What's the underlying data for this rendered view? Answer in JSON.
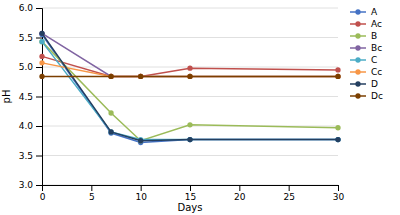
{
  "chart_data": {
    "type": "line",
    "xlabel": "Days",
    "ylabel": "pH",
    "x": [
      0,
      7,
      10,
      15,
      30
    ],
    "series": [
      {
        "name": "A",
        "color": "#4472C4",
        "marker": "o",
        "values": [
          5.55,
          3.88,
          3.72,
          3.77,
          3.77
        ]
      },
      {
        "name": "Ac",
        "color": "#C0504D",
        "marker": "o",
        "values": [
          5.18,
          4.84,
          4.84,
          4.98,
          4.95
        ]
      },
      {
        "name": "B",
        "color": "#9BBB59",
        "marker": "o",
        "values": [
          5.43,
          4.22,
          3.75,
          4.02,
          3.97
        ]
      },
      {
        "name": "Bc",
        "color": "#8064A2",
        "marker": "o",
        "values": [
          5.57,
          4.84,
          4.84,
          4.84,
          4.84
        ]
      },
      {
        "name": "C",
        "color": "#4BACC6",
        "marker": "o",
        "values": [
          5.43,
          3.9,
          3.77,
          3.77,
          3.77
        ]
      },
      {
        "name": "Cc",
        "color": "#F79646",
        "marker": "o",
        "values": [
          5.07,
          4.84,
          4.84,
          4.84,
          4.84
        ]
      },
      {
        "name": "D",
        "color": "#243F60",
        "marker": "o",
        "values": [
          5.57,
          3.9,
          3.75,
          3.77,
          3.77
        ]
      },
      {
        "name": "Dc",
        "color": "#7B3F00",
        "marker": "o",
        "values": [
          4.84,
          4.84,
          4.84,
          4.84,
          4.84
        ]
      }
    ],
    "xlim": [
      0,
      30
    ],
    "ylim": [
      3,
      6
    ],
    "xticks": [
      0,
      5,
      10,
      15,
      20,
      25,
      30
    ],
    "yticks": [
      {
        "value": 3,
        "label": "3.0"
      },
      {
        "value": 3.5,
        "label": "3.5"
      },
      {
        "value": 4,
        "label": "4.0"
      },
      {
        "value": 4.5,
        "label": "4.5"
      },
      {
        "value": 5,
        "label": "5.0"
      },
      {
        "value": 5.5,
        "label": "5.5"
      },
      {
        "value": 6,
        "label": "6.0"
      }
    ],
    "grid": true,
    "legend": "right"
  }
}
